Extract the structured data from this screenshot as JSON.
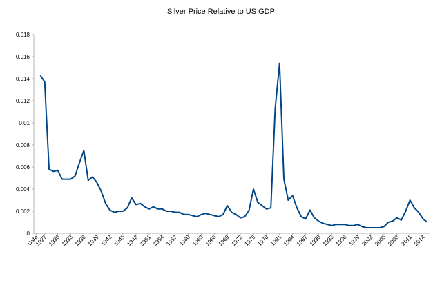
{
  "chart_data": {
    "type": "line",
    "title": "Silver Price Relative to US GDP",
    "categories": [
      "Date",
      null,
      "1927",
      null,
      null,
      "1930",
      null,
      null,
      "1933",
      null,
      null,
      "1936",
      null,
      null,
      "1939",
      null,
      null,
      "1942",
      null,
      null,
      "1945",
      null,
      null,
      "1948",
      null,
      null,
      "1951",
      null,
      null,
      "1954",
      null,
      null,
      "1957",
      null,
      null,
      "1960",
      null,
      null,
      "1963",
      null,
      null,
      "1966",
      null,
      null,
      "1969",
      null,
      null,
      "1972",
      null,
      null,
      "1975",
      null,
      null,
      "1978",
      null,
      null,
      "1981",
      null,
      null,
      "1984",
      null,
      null,
      "1987",
      null,
      null,
      "1990",
      null,
      null,
      "1993",
      null,
      null,
      "1996",
      null,
      null,
      "1999",
      null,
      null,
      "2002",
      null,
      null,
      "2005",
      null,
      null,
      "2008",
      null,
      null,
      "2011",
      null,
      null,
      "2014",
      null
    ],
    "series": [
      {
        "name": null,
        "color": "#004586",
        "values": [
          null,
          0.0143,
          0.0137,
          0.0058,
          0.0056,
          0.0057,
          0.0049,
          0.0049,
          0.0049,
          0.0052,
          0.0064,
          0.0075,
          0.0048,
          0.0051,
          0.0046,
          0.0038,
          0.0027,
          0.0021,
          0.0019,
          0.002,
          0.002,
          0.0023,
          0.0032,
          0.0026,
          0.0027,
          0.0024,
          0.0022,
          0.0024,
          0.0022,
          0.0022,
          0.002,
          0.002,
          0.0019,
          0.0019,
          0.0017,
          0.0017,
          0.0016,
          0.0015,
          0.0017,
          0.0018,
          0.0017,
          0.0016,
          0.0015,
          0.0017,
          0.0025,
          0.0019,
          0.0017,
          0.0014,
          0.0015,
          0.0021,
          0.004,
          0.0028,
          0.0025,
          0.0022,
          0.0023,
          0.0113,
          0.0154,
          0.0049,
          0.003,
          0.0034,
          0.0023,
          0.0015,
          0.0013,
          0.0021,
          0.0014,
          0.0011,
          0.0009,
          0.0008,
          0.0007,
          0.0008,
          0.0008,
          0.0008,
          0.0007,
          0.0007,
          0.0008,
          0.0006,
          0.0005,
          0.0005,
          0.0005,
          0.0005,
          0.0006,
          0.001,
          0.0011,
          0.0014,
          0.0012,
          0.002,
          0.003,
          0.0023,
          0.0019,
          0.0013,
          0.001
        ]
      }
    ],
    "ylim": [
      0,
      0.018
    ],
    "yticks": [
      0,
      0.002,
      0.004,
      0.006,
      0.008,
      0.01,
      0.012,
      0.014,
      0.016,
      0.018
    ],
    "grid": false
  }
}
